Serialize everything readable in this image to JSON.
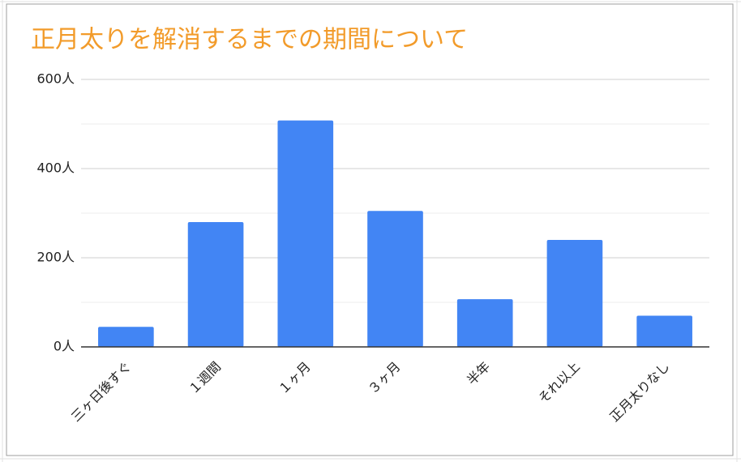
{
  "chart_data": {
    "type": "bar",
    "title": "正月太りを解消するまでの期間について",
    "categories": [
      "三ヶ日後すぐ",
      "１週間",
      "１ヶ月",
      "３ヶ月",
      "半年",
      "それ以上",
      "正月太りなし"
    ],
    "values": [
      45,
      280,
      508,
      305,
      107,
      240,
      70
    ],
    "color": "#4285f4",
    "ylim": [
      0,
      600
    ],
    "yticks": [
      {
        "value": 0,
        "label": "0人"
      },
      {
        "value": 200,
        "label": "200人"
      },
      {
        "value": 400,
        "label": "400人"
      },
      {
        "value": 600,
        "label": "600人"
      }
    ],
    "minor_yticks": [
      100,
      300,
      500
    ],
    "grid": true
  }
}
